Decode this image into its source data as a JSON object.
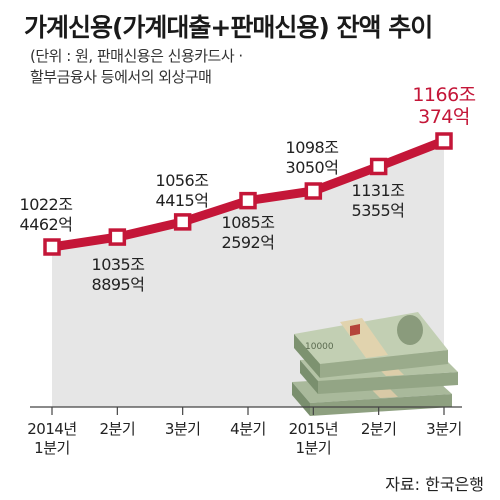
{
  "header": {
    "title": "가계신용(가계대출+판매신용) 잔액 추이",
    "subtitle_lines": [
      "(단위 : 원, 판매신용은 신용카드사 ·",
      "할부금융사 등에서의 외상구매"
    ]
  },
  "footer": {
    "source": "자료: 한국은행"
  },
  "colors": {
    "line": "#c41638",
    "area": "#e6e6e6",
    "highlight": "#c41638"
  },
  "chart_data": {
    "type": "area",
    "x": [
      "2014년 1분기",
      "2분기",
      "3분기",
      "4분기",
      "2015년 1분기",
      "2분기",
      "3분기"
    ],
    "x_tick_lines": [
      [
        "2014년",
        "1분기"
      ],
      [
        "2분기"
      ],
      [
        "3분기"
      ],
      [
        "4분기"
      ],
      [
        "2015년",
        "1분기"
      ],
      [
        "2분기"
      ],
      [
        "3분기"
      ]
    ],
    "values": [
      1022.4462,
      1035.8895,
      1056.4415,
      1085.2592,
      1098.305,
      1131.5355,
      1166.0374
    ],
    "unit": "조원",
    "data_labels": [
      [
        "1022조",
        "4462억"
      ],
      [
        "1035조",
        "8895억"
      ],
      [
        "1056조",
        "4415억"
      ],
      [
        "1085조",
        "2592억"
      ],
      [
        "1098조",
        "3050억"
      ],
      [
        "1131조",
        "5355억"
      ],
      [
        "1166조",
        "374억"
      ]
    ],
    "label_position": [
      "above",
      "below",
      "above",
      "below",
      "above",
      "below",
      "above"
    ],
    "highlight_last": true,
    "ylim": [
      900,
      1200
    ],
    "grid": false,
    "legend": "none"
  }
}
